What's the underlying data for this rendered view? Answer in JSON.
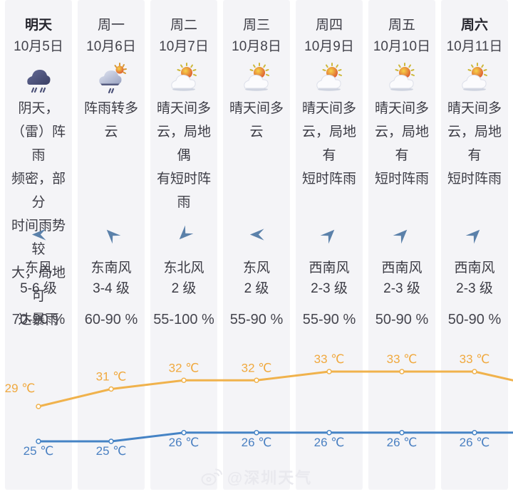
{
  "columns": [
    {
      "day": "明天",
      "date": "10月5日",
      "icon": "rain-icon",
      "desc": "阴天，\n（雷）阵雨\n频密，部分\n时间雨势较\n大，局地可\n达暴雨",
      "wind_dir": "东风",
      "wind_level": "5-6 级",
      "humidity": "70-90 %",
      "arrow_deg": 0
    },
    {
      "day": "周一",
      "date": "10月6日",
      "icon": "sun-shower-icon",
      "desc": "阵雨转多云",
      "wind_dir": "东南风",
      "wind_level": "3-4 级",
      "humidity": "60-90 %",
      "arrow_deg": 45
    },
    {
      "day": "周二",
      "date": "10月7日",
      "icon": "sun-cloud-icon",
      "desc": "晴天间多\n云，局地偶\n有短时阵雨",
      "wind_dir": "东北风",
      "wind_level": "2 级",
      "humidity": "55-100 %",
      "arrow_deg": -45
    },
    {
      "day": "周三",
      "date": "10月8日",
      "icon": "sun-cloud-icon",
      "desc": "晴天间多云",
      "wind_dir": "东风",
      "wind_level": "2 级",
      "humidity": "55-90 %",
      "arrow_deg": 0
    },
    {
      "day": "周四",
      "date": "10月9日",
      "icon": "sun-cloud-icon",
      "desc": "晴天间多\n云，局地有\n短时阵雨",
      "wind_dir": "西南风",
      "wind_level": "2-3 级",
      "humidity": "55-90 %",
      "arrow_deg": 135
    },
    {
      "day": "周五",
      "date": "10月10日",
      "icon": "sun-cloud-icon",
      "desc": "晴天间多\n云，局地有\n短时阵雨",
      "wind_dir": "西南风",
      "wind_level": "2-3 级",
      "humidity": "50-90 %",
      "arrow_deg": 135
    },
    {
      "day": "周六",
      "date": "10月11日",
      "icon": "sun-cloud-icon",
      "desc": "晴天间多\n云，局地有\n短时阵雨",
      "wind_dir": "西南风",
      "wind_level": "2-3 级",
      "humidity": "50-90 %",
      "arrow_deg": 135
    }
  ],
  "chart_data": {
    "type": "line",
    "x": [
      "10月5日",
      "10月6日",
      "10月7日",
      "10月8日",
      "10月9日",
      "10月10日",
      "10月11日"
    ],
    "series": [
      {
        "name": "high",
        "values": [
          29,
          31,
          32,
          32,
          33,
          33,
          33
        ],
        "trailing_value": 32,
        "color": "#f0b24c",
        "label_color": "#f0a93f"
      },
      {
        "name": "low",
        "values": [
          25,
          25,
          26,
          26,
          26,
          26,
          26
        ],
        "trailing_value": 26,
        "color": "#4583c5",
        "label_color": "#4a80c2"
      }
    ],
    "unit": "℃",
    "ylim": [
      24,
      34
    ],
    "grid": false,
    "legend": false
  },
  "watermark": {
    "text": "@深圳天气"
  }
}
